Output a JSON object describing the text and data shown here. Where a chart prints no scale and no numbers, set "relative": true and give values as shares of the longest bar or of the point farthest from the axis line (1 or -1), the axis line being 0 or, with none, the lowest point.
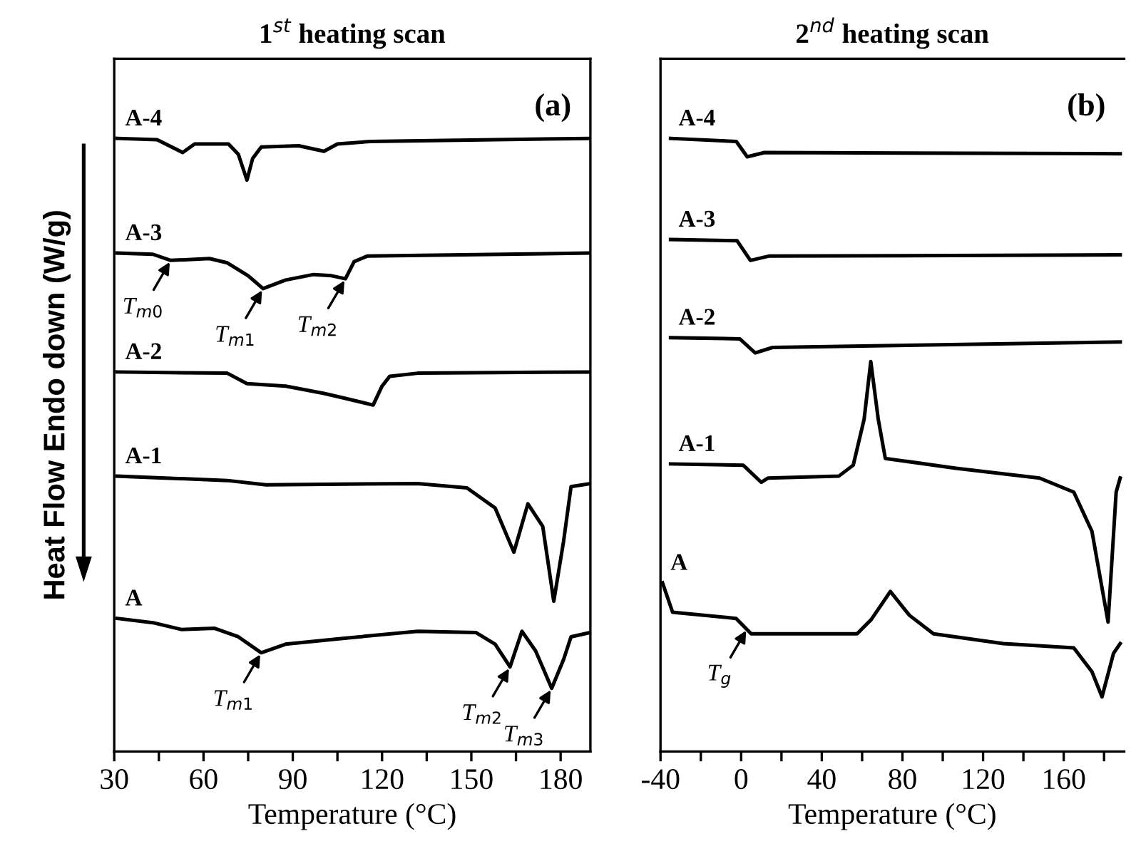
{
  "chart_data": [
    {
      "type": "line",
      "title": "1$^{st}$ heating scan",
      "xlabel": "Temperature (°C)",
      "ylabel": "Heat Flow Endo down (W/g)",
      "relative": true,
      "xlim": [
        30,
        190
      ],
      "xticks": [
        30,
        {
          "value": 45,
          "label": null
        },
        60,
        {
          "value": 75,
          "label": null
        },
        90,
        {
          "value": 105,
          "label": null
        },
        120,
        {
          "value": 135,
          "label": null
        },
        150,
        {
          "value": 165,
          "label": null
        },
        180
      ],
      "annotations": [
        "(a)",
        {
          "text": "T$_{m0}$",
          "x": 49,
          "y": 0.801
        },
        {
          "text": "T$_{m1}$",
          "x": 80,
          "y": 0.755
        },
        {
          "text": "T$_{m2}$",
          "x": 107.7,
          "y": 0.771
        },
        {
          "text": "T$_{m1}$",
          "x": 79.4,
          "y": 0.161
        },
        {
          "text": "T$_{m2}$",
          "x": 163,
          "y": 0.138
        },
        {
          "text": "T$_{m3}$",
          "x": 177,
          "y": 0.103
        }
      ],
      "series": [
        {
          "name": "A-4",
          "color": "#000000",
          "x": [
            31,
            44.4,
            53,
            57,
            68.4,
            71.7,
            74.6,
            76.5,
            79.4,
            92,
            100.5,
            105,
            116,
            190
          ],
          "values": [
            1.0,
            0.998,
            0.977,
            0.991,
            0.991,
            0.974,
            0.932,
            0.967,
            0.986,
            0.988,
            0.979,
            0.991,
            0.995,
            1.0
          ]
        },
        {
          "name": "A-3",
          "color": "#000000",
          "x": [
            31,
            43,
            49,
            62,
            68,
            75,
            80,
            87.6,
            97,
            103,
            107.7,
            110.6,
            115,
            190
          ],
          "values": [
            0.813,
            0.811,
            0.801,
            0.804,
            0.797,
            0.776,
            0.755,
            0.769,
            0.778,
            0.776,
            0.771,
            0.799,
            0.808,
            0.813
          ]
        },
        {
          "name": "A-2",
          "color": "#000000",
          "x": [
            31,
            68,
            74.6,
            87.6,
            100.5,
            106.7,
            117,
            120,
            122.6,
            132,
            190
          ],
          "values": [
            0.619,
            0.617,
            0.6,
            0.596,
            0.584,
            0.577,
            0.565,
            0.596,
            0.612,
            0.617,
            0.619
          ]
        },
        {
          "name": "A-1",
          "color": "#000000",
          "x": [
            31,
            68,
            81,
            132,
            148.5,
            158,
            164.3,
            169,
            174,
            177.7,
            181,
            183.5,
            190
          ],
          "values": [
            0.449,
            0.442,
            0.435,
            0.437,
            0.43,
            0.397,
            0.325,
            0.404,
            0.367,
            0.245,
            0.343,
            0.432,
            0.437
          ]
        },
        {
          "name": "A",
          "color": "#000000",
          "x": [
            31,
            43,
            52.5,
            63.6,
            71.7,
            79.4,
            87.6,
            108,
            132,
            151.5,
            158,
            163,
            167,
            171.6,
            177,
            181,
            183.5,
            190
          ],
          "values": [
            0.217,
            0.21,
            0.199,
            0.201,
            0.187,
            0.161,
            0.175,
            0.185,
            0.196,
            0.194,
            0.175,
            0.138,
            0.196,
            0.164,
            0.103,
            0.15,
            0.187,
            0.194
          ]
        }
      ]
    },
    {
      "type": "line",
      "title": "2$^{nd}$ heating scan",
      "xlabel": "Temperature (°C)",
      "relative": true,
      "xlim": [
        -40,
        190
      ],
      "xticks": [
        -40,
        {
          "value": -20,
          "label": null
        },
        0,
        {
          "value": 20,
          "label": null
        },
        40,
        {
          "value": 60,
          "label": null
        },
        80,
        {
          "value": 100,
          "label": null
        },
        120,
        {
          "value": 140,
          "label": null
        },
        160,
        {
          "value": 180,
          "label": null
        }
      ],
      "annotations": [
        "(b)",
        {
          "text": "T$_{g}$",
          "x": 3,
          "y": 0.2
        }
      ],
      "series": [
        {
          "name": "A-4",
          "color": "#000000",
          "x": [
            -35,
            -2.4,
            3,
            11.6,
            188
          ],
          "values": [
            1.0,
            0.995,
            0.97,
            0.977,
            0.975
          ]
        },
        {
          "name": "A-3",
          "color": "#000000",
          "x": [
            -35,
            -2,
            4.6,
            13.7,
            188
          ],
          "values": [
            0.835,
            0.833,
            0.801,
            0.808,
            0.81
          ]
        },
        {
          "name": "A-2",
          "color": "#000000",
          "x": [
            -35,
            -0.7,
            7,
            15.6,
            188
          ],
          "values": [
            0.675,
            0.673,
            0.65,
            0.659,
            0.668
          ]
        },
        {
          "name": "A-1",
          "color": "#000000",
          "x": [
            -35,
            1,
            10,
            13.4,
            48.4,
            55.6,
            61,
            64.3,
            68,
            71.5,
            106.5,
            148,
            165,
            174,
            182,
            186,
            188
          ],
          "values": [
            0.469,
            0.467,
            0.439,
            0.446,
            0.449,
            0.467,
            0.542,
            0.636,
            0.542,
            0.478,
            0.462,
            0.446,
            0.423,
            0.359,
            0.211,
            0.423,
            0.446
          ]
        },
        {
          "name": "A",
          "color": "#000000",
          "x": [
            -39,
            -34,
            -2.5,
            5,
            13.4,
            57.5,
            64.5,
            74,
            83.5,
            95.4,
            130,
            165,
            174,
            179,
            184.7,
            188
          ],
          "values": [
            0.275,
            0.227,
            0.217,
            0.192,
            0.192,
            0.192,
            0.215,
            0.261,
            0.222,
            0.192,
            0.176,
            0.169,
            0.13,
            0.089,
            0.16,
            0.176
          ]
        }
      ]
    }
  ]
}
